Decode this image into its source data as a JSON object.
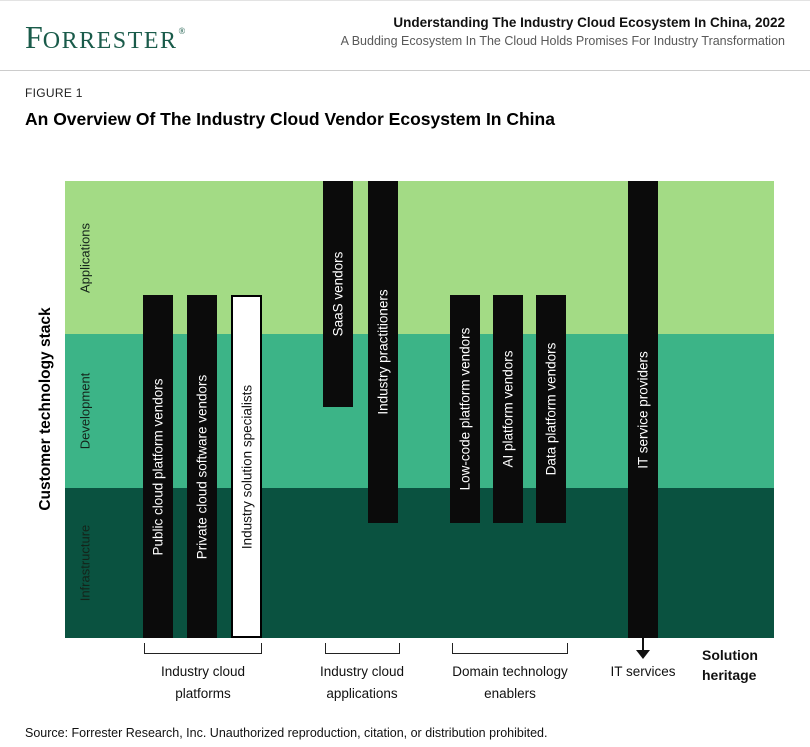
{
  "header": {
    "logo_first_letter": "F",
    "logo_rest": "ORRESTER",
    "logo_mark": "®",
    "title": "Understanding The Industry Cloud Ecosystem In China, 2022",
    "subtitle": "A Budding Ecosystem In The Cloud Holds Promises For Industry Transformation"
  },
  "figure": {
    "label": "FIGURE 1",
    "title": "An Overview Of The Industry Cloud Vendor Ecosystem In China"
  },
  "chart": {
    "y_axis_title": "Customer technology stack",
    "bands": [
      {
        "label": "Applications",
        "color": "#a3db85"
      },
      {
        "label": "Development",
        "color": "#3cb487"
      },
      {
        "label": "Infrastructure",
        "color": "#0a5240"
      }
    ],
    "bars": [
      {
        "label": "Public cloud platform vendors",
        "group": "Industry cloud platforms",
        "fill": "black",
        "spans": [
          "Applications",
          "Development",
          "Infrastructure"
        ]
      },
      {
        "label": "Private cloud software vendors",
        "group": "Industry cloud platforms",
        "fill": "black",
        "spans": [
          "Applications",
          "Development",
          "Infrastructure"
        ]
      },
      {
        "label": "Industry solution specialists",
        "group": "Industry cloud platforms",
        "fill": "white",
        "spans": [
          "Applications",
          "Development",
          "Infrastructure"
        ]
      },
      {
        "label": "SaaS vendors",
        "group": "Industry cloud applications",
        "fill": "black",
        "spans": [
          "Applications",
          "Development"
        ]
      },
      {
        "label": "Industry practitioners",
        "group": "Industry cloud applications",
        "fill": "black",
        "spans": [
          "Applications",
          "Development",
          "Infrastructure"
        ]
      },
      {
        "label": "Low-code platform vendors",
        "group": "Domain technology enablers",
        "fill": "black",
        "spans": [
          "Applications",
          "Development",
          "Infrastructure"
        ]
      },
      {
        "label": "AI platform vendors",
        "group": "Domain technology enablers",
        "fill": "black",
        "spans": [
          "Applications",
          "Development",
          "Infrastructure"
        ]
      },
      {
        "label": "Data platform vendors",
        "group": "Domain technology enablers",
        "fill": "black",
        "spans": [
          "Applications",
          "Development",
          "Infrastructure"
        ]
      },
      {
        "label": "IT service providers",
        "group": "IT services",
        "fill": "black",
        "spans": [
          "Applications",
          "Development",
          "Infrastructure"
        ]
      }
    ],
    "groups": [
      {
        "label": "Industry cloud platforms"
      },
      {
        "label": "Industry cloud applications"
      },
      {
        "label": "Domain technology enablers"
      },
      {
        "label": "IT services"
      }
    ],
    "solution_heritage": "Solution heritage"
  },
  "source": "Source: Forrester Research, Inc. Unauthorized reproduction, citation, or distribution prohibited."
}
